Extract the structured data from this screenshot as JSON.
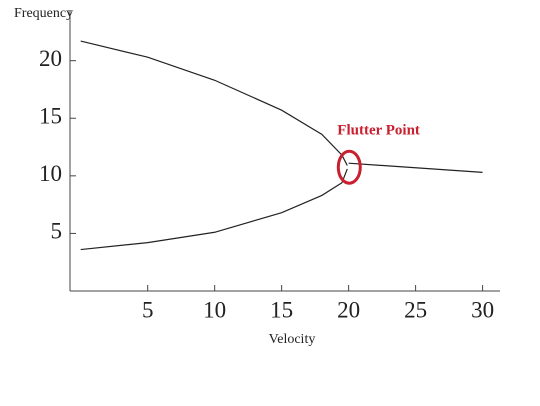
{
  "chart_data": {
    "type": "line",
    "y_label": "Frequency",
    "x_label": "Velocity",
    "annotation": {
      "text": "Flutter Point",
      "color": "#c8202f"
    },
    "series": [
      {
        "color": "#222222",
        "x": [
          0,
          5,
          10,
          15,
          18,
          19.5,
          19.9
        ],
        "values": [
          21.7,
          20.3,
          18.3,
          15.7,
          13.6,
          11.8,
          10.9
        ]
      },
      {
        "color": "#222222",
        "x": [
          0,
          5,
          10,
          15,
          18,
          19.5,
          19.9
        ],
        "values": [
          3.6,
          4.2,
          5.1,
          6.8,
          8.3,
          9.4,
          10.6
        ]
      },
      {
        "color": "#222222",
        "x": [
          20,
          30
        ],
        "values": [
          11.1,
          10.3
        ]
      }
    ],
    "xlim": [
      -0.8,
      31.3
    ],
    "ylim": [
      0,
      24.4
    ],
    "xticks": [
      5,
      10,
      15,
      20,
      25,
      30
    ],
    "yticks": [
      5,
      10,
      15,
      20
    ],
    "grid": false
  }
}
